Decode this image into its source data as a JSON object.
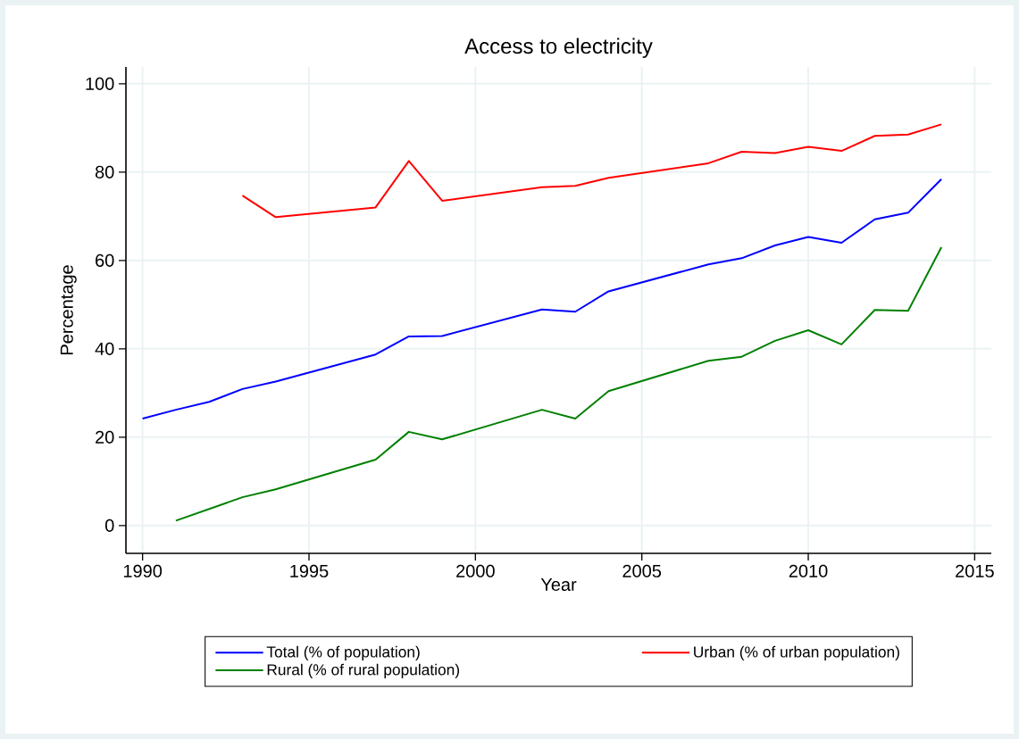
{
  "chart_data": {
    "type": "line",
    "title": "Access to electricity",
    "xlabel": "Year",
    "ylabel": "Percentage",
    "series": [
      {
        "name": "Total (% of population)",
        "color": "#0000ff",
        "x": [
          1990,
          1991,
          1992,
          1993,
          1994,
          1997,
          1998,
          1999,
          2002,
          2003,
          2004,
          2007,
          2008,
          2009,
          2010,
          2011,
          2012,
          2013,
          2014
        ],
        "values": [
          24.2,
          26.2,
          28.0,
          30.9,
          32.6,
          38.7,
          42.8,
          42.9,
          48.9,
          48.4,
          53.0,
          59.1,
          60.5,
          63.4,
          65.3,
          64.0,
          69.3,
          70.8,
          78.4
        ]
      },
      {
        "name": "Urban (% of urban population)",
        "color": "#ff0000",
        "x": [
          1993,
          1994,
          1997,
          1998,
          1999,
          2002,
          2003,
          2004,
          2007,
          2008,
          2009,
          2010,
          2011,
          2012,
          2013,
          2014
        ],
        "values": [
          74.7,
          69.8,
          72.0,
          82.5,
          73.5,
          76.6,
          76.9,
          78.7,
          82.0,
          84.6,
          84.3,
          85.7,
          84.8,
          88.2,
          88.5,
          90.8
        ]
      },
      {
        "name": "Rural (% of rural population)",
        "color": "#008000",
        "x": [
          1991,
          1993,
          1994,
          1997,
          1998,
          1999,
          2002,
          2003,
          2004,
          2007,
          2008,
          2009,
          2010,
          2011,
          2012,
          2013,
          2014
        ],
        "values": [
          1.1,
          6.4,
          8.2,
          14.9,
          21.2,
          19.5,
          26.2,
          24.2,
          30.4,
          37.3,
          38.2,
          41.8,
          44.2,
          41.0,
          48.8,
          48.6,
          63.0
        ]
      }
    ],
    "xlim": [
      1989.5,
      2015.5
    ],
    "ylim": [
      -6.3,
      103.8
    ],
    "xticks": [
      1990,
      1995,
      2000,
      2005,
      2010,
      2015
    ],
    "yticks": [
      0,
      20,
      40,
      60,
      80,
      100
    ],
    "grid": true,
    "legend": "bottom",
    "marker": "none",
    "line_style": "solid"
  }
}
